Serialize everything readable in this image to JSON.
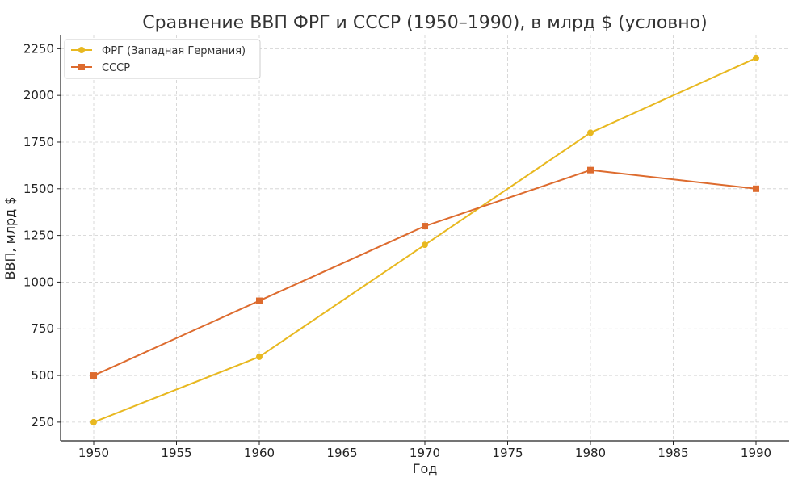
{
  "chart_data": {
    "type": "line",
    "title": "Сравнение ВВП ФРГ и СССР (1950–1990), в млрд $ (условно)",
    "xlabel": "Год",
    "ylabel": "ВВП, млрд $",
    "xlim": [
      1948,
      1992
    ],
    "ylim": [
      150,
      2325
    ],
    "xticks": [
      1950,
      1955,
      1960,
      1965,
      1970,
      1975,
      1980,
      1985,
      1990
    ],
    "yticks": [
      250,
      500,
      750,
      1000,
      1250,
      1500,
      1750,
      2000,
      2250
    ],
    "grid": true,
    "legend_position": "top-left",
    "series": [
      {
        "name": "ФРГ (Западная Германия)",
        "color": "#E8B820",
        "marker": "circle",
        "x": [
          1950,
          1960,
          1970,
          1980,
          1990
        ],
        "values": [
          250,
          600,
          1200,
          1800,
          2200
        ]
      },
      {
        "name": "СССР",
        "color": "#DD6B2E",
        "marker": "square",
        "x": [
          1950,
          1960,
          1970,
          1980,
          1990
        ],
        "values": [
          500,
          900,
          1300,
          1600,
          1500
        ]
      }
    ]
  }
}
